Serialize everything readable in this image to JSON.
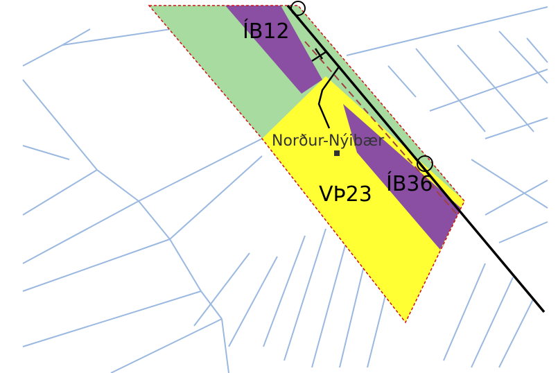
{
  "labels": {
    "zone_ib12": "ÍB12",
    "place_name": "Norður-Nýibær",
    "zone_vth23": "VÞ23",
    "zone_ib36": "ÍB36"
  }
}
